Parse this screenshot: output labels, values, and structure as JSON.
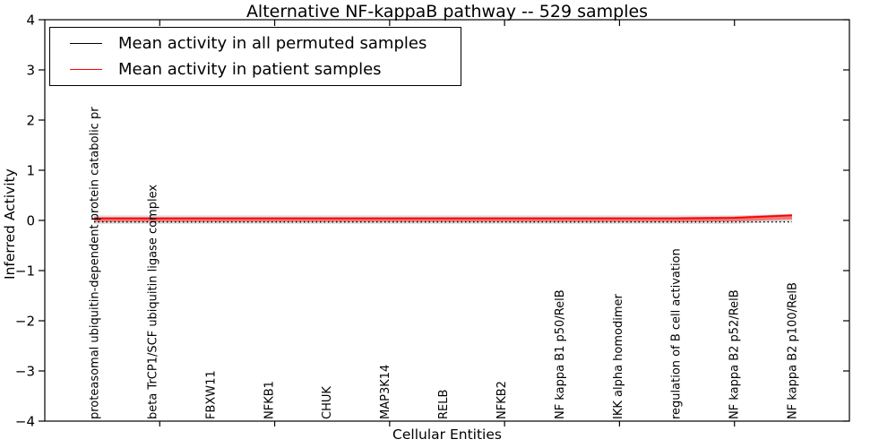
{
  "figure": {
    "title": "Alternative NF-kappaB pathway -- 529 samples",
    "xlabel": "Cellular Entities",
    "ylabel": "Inferred Activity"
  },
  "legend": {
    "position": "upper left",
    "entries": [
      {
        "label": "Mean activity in all permuted samples",
        "color": "#000000"
      },
      {
        "label": "Mean activity in patient samples",
        "color": "#ff0000"
      }
    ]
  },
  "chart_data": {
    "type": "line",
    "title": "Alternative NF-kappaB pathway -- 529 samples",
    "xlabel": "Cellular Entities",
    "ylabel": "Inferred Activity",
    "ylim": [
      -4,
      4
    ],
    "yticks": [
      4,
      3,
      2,
      1,
      0,
      -1,
      -2,
      -3,
      -4
    ],
    "x_tick_divisions": 7,
    "grid": false,
    "legend_position": "upper left",
    "categories": [
      "proteasomal ubiquitin-dependent protein catabolic pr",
      "beta TrCP1/SCF ubiquitin ligase complex",
      "FBXW11",
      "NFKB1",
      "CHUK",
      "MAP3K14",
      "RELB",
      "NFKB2",
      "NF kappa B1 p50/RelB",
      "IKK alpha homodimer",
      "regulation of B cell activation",
      "NF kappa B2 p52/RelB",
      "NF kappa B2 p100/RelB"
    ],
    "series": [
      {
        "name": "Mean activity in all permuted samples",
        "color": "#000000",
        "style": "dotted",
        "width": 1.5,
        "values": [
          -0.03,
          -0.03,
          -0.03,
          -0.03,
          -0.03,
          -0.03,
          -0.03,
          -0.03,
          -0.03,
          -0.03,
          -0.03,
          -0.03,
          -0.03
        ]
      },
      {
        "name": "Mean activity in patient samples",
        "color": "#ff0000",
        "style": "solid",
        "width": 1.8,
        "values": [
          0.04,
          0.04,
          0.04,
          0.04,
          0.04,
          0.04,
          0.04,
          0.04,
          0.04,
          0.04,
          0.04,
          0.05,
          0.1
        ]
      }
    ],
    "bands": [
      {
        "name": "permuted-std-band",
        "color": "rgba(125,125,125,0.25)",
        "hi": [
          0.1,
          0.1,
          0.1,
          0.1,
          0.1,
          0.1,
          0.1,
          0.1,
          0.1,
          0.1,
          0.1,
          0.1,
          0.13
        ],
        "lo": [
          -0.07,
          -0.07,
          -0.07,
          -0.07,
          -0.07,
          -0.07,
          -0.07,
          -0.07,
          -0.07,
          -0.07,
          -0.07,
          -0.07,
          -0.02
        ]
      },
      {
        "name": "patient-std-band",
        "color": "rgba(255,0,0,0.45)",
        "hi": [
          0.065,
          0.065,
          0.065,
          0.065,
          0.065,
          0.065,
          0.065,
          0.065,
          0.065,
          0.065,
          0.065,
          0.075,
          0.125
        ],
        "lo": [
          -0.03,
          -0.03,
          -0.03,
          -0.03,
          -0.03,
          -0.03,
          -0.03,
          -0.03,
          -0.03,
          -0.03,
          -0.03,
          -0.02,
          0.02
        ]
      }
    ]
  }
}
